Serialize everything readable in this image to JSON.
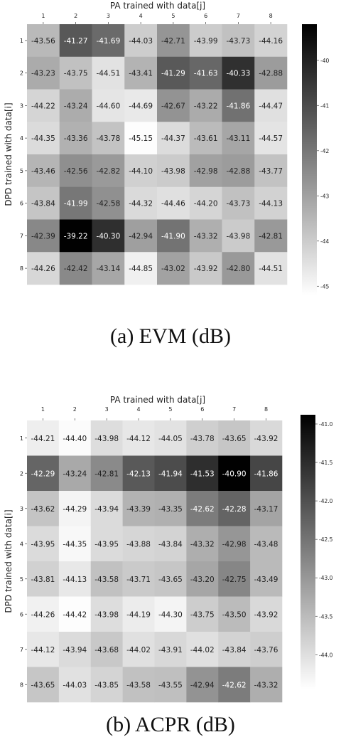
{
  "chart_data": [
    {
      "type": "heatmap",
      "xlabel": "PA trained with data[j]",
      "ylabel": "DPD trained with data[i]",
      "x_categories": [
        "1",
        "2",
        "3",
        "4",
        "5",
        "6",
        "7",
        "8"
      ],
      "y_categories": [
        "1",
        "2",
        "3",
        "4",
        "5",
        "6",
        "7",
        "8"
      ],
      "values": [
        [
          -43.56,
          -41.27,
          -41.69,
          -44.03,
          -42.71,
          -43.99,
          -43.73,
          -44.16
        ],
        [
          -43.23,
          -43.75,
          -44.51,
          -43.41,
          -41.29,
          -41.63,
          -40.33,
          -42.88
        ],
        [
          -44.22,
          -43.24,
          -44.6,
          -44.69,
          -42.67,
          -43.22,
          -41.86,
          -44.47
        ],
        [
          -44.35,
          -43.36,
          -43.78,
          -45.15,
          -44.37,
          -43.61,
          -43.11,
          -44.57
        ],
        [
          -43.46,
          -42.56,
          -42.82,
          -44.1,
          -43.98,
          -42.98,
          -42.88,
          -43.77
        ],
        [
          -43.84,
          -41.99,
          -42.58,
          -44.32,
          -44.46,
          -44.2,
          -43.73,
          -44.13
        ],
        [
          -42.39,
          -39.22,
          -40.3,
          -42.94,
          -41.9,
          -43.32,
          -43.98,
          -42.81
        ],
        [
          -44.26,
          -42.42,
          -43.14,
          -44.85,
          -43.02,
          -43.92,
          -42.8,
          -44.51
        ]
      ],
      "labels": [
        [
          "-43.56",
          "-41.27",
          "-41.69",
          "-44.03",
          "-42.71",
          "-43.99",
          "-43.73",
          "-44.16"
        ],
        [
          "-43.23",
          "-43.75",
          "-44.51",
          "-43.41",
          "-41.29",
          "-41.63",
          "-40.33",
          "-42.88"
        ],
        [
          "-44.22",
          "-43.24",
          "-44.60",
          "-44.69",
          "-42.67",
          "-43.22",
          "-41.86",
          "-44.47"
        ],
        [
          "-44.35",
          "-43.36",
          "-43.78",
          "-45.15",
          "-44.37",
          "-43.61",
          "-43.11",
          "-44.57"
        ],
        [
          "-43.46",
          "-42.56",
          "-42.82",
          "-44.10",
          "-43.98",
          "-42.98",
          "-42.88",
          "-43.77"
        ],
        [
          "-43.84",
          "-41.99",
          "-42.58",
          "-44.32",
          "-44.46",
          "-44.20",
          "-43.73",
          "-44.13"
        ],
        [
          "-42.39",
          "-39.22",
          "-40.30",
          "-42.94",
          "-41.90",
          "-43.32",
          "-43.98",
          "-42.81"
        ],
        [
          "-44.26",
          "-42.42",
          "-43.14",
          "-44.85",
          "-43.02",
          "-43.92",
          "-42.80",
          "-44.51"
        ]
      ],
      "colorbar": {
        "min": -45.2,
        "max": -39.2,
        "ticks": [
          "-40",
          "-41",
          "-42",
          "-43",
          "-44",
          "-45"
        ],
        "colormap": "greys"
      },
      "caption": "(a)  EVM  (dB)"
    },
    {
      "type": "heatmap",
      "xlabel": "PA trained with data[j]",
      "ylabel": "DPD trained with data[i]",
      "x_categories": [
        "1",
        "2",
        "3",
        "4",
        "5",
        "6",
        "7",
        "8"
      ],
      "y_categories": [
        "1",
        "2",
        "3",
        "4",
        "5",
        "6",
        "7",
        "8"
      ],
      "values": [
        [
          -44.21,
          -44.4,
          -43.98,
          -44.12,
          -44.05,
          -43.78,
          -43.65,
          -43.92
        ],
        [
          -42.29,
          -43.24,
          -42.81,
          -42.13,
          -41.94,
          -41.53,
          -40.9,
          -41.86
        ],
        [
          -43.62,
          -44.29,
          -43.94,
          -43.39,
          -43.35,
          -42.62,
          -42.28,
          -43.17
        ],
        [
          -43.95,
          -44.35,
          -43.95,
          -43.88,
          -43.84,
          -43.32,
          -42.98,
          -43.48
        ],
        [
          -43.81,
          -44.13,
          -43.58,
          -43.71,
          -43.65,
          -43.2,
          -42.75,
          -43.49
        ],
        [
          -44.26,
          -44.42,
          -43.98,
          -44.19,
          -44.3,
          -43.75,
          -43.5,
          -43.92
        ],
        [
          -44.12,
          -43.94,
          -43.68,
          -44.02,
          -43.91,
          -44.02,
          -43.84,
          -43.76
        ],
        [
          -43.65,
          -44.03,
          -43.85,
          -43.58,
          -43.55,
          -42.94,
          -42.62,
          -43.32
        ]
      ],
      "labels": [
        [
          "-44.21",
          "-44.40",
          "-43.98",
          "-44.12",
          "-44.05",
          "-43.78",
          "-43.65",
          "-43.92"
        ],
        [
          "-42.29",
          "-43.24",
          "-42.81",
          "-42.13",
          "-41.94",
          "-41.53",
          "-40.90",
          "-41.86"
        ],
        [
          "-43.62",
          "-44.29",
          "-43.94",
          "-43.39",
          "-43.35",
          "-42.62",
          "-42.28",
          "-43.17"
        ],
        [
          "-43.95",
          "-44.35",
          "-43.95",
          "-43.88",
          "-43.84",
          "-43.32",
          "-42.98",
          "-43.48"
        ],
        [
          "-43.81",
          "-44.13",
          "-43.58",
          "-43.71",
          "-43.65",
          "-43.20",
          "-42.75",
          "-43.49"
        ],
        [
          "-44.26",
          "-44.42",
          "-43.98",
          "-44.19",
          "-44.30",
          "-43.75",
          "-43.50",
          "-43.92"
        ],
        [
          "-44.12",
          "-43.94",
          "-43.68",
          "-44.02",
          "-43.91",
          "-44.02",
          "-43.84",
          "-43.76"
        ],
        [
          "-43.65",
          "-44.03",
          "-43.85",
          "-43.58",
          "-43.55",
          "-42.94",
          "-42.62",
          "-43.32"
        ]
      ],
      "colorbar": {
        "min": -44.45,
        "max": -40.88,
        "ticks": [
          "-41.0",
          "-41.5",
          "-42.0",
          "-42.5",
          "-43.0",
          "-43.5",
          "-44.0"
        ],
        "colormap": "greys"
      },
      "caption": "(b)  ACPR  (dB)"
    }
  ]
}
